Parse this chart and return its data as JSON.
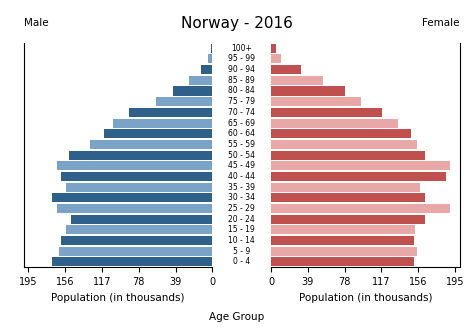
{
  "title": "Norway - 2016",
  "male_label": "Male",
  "female_label": "Female",
  "xlabel_left": "Population (in thousands)",
  "xlabel_center": "Age Group",
  "xlabel_right": "Population (in thousands)",
  "age_groups": [
    "0 - 4",
    "5 - 9",
    "10 - 14",
    "15 - 19",
    "20 - 24",
    "25 - 29",
    "30 - 34",
    "35 - 39",
    "40 - 44",
    "45 - 49",
    "50 - 54",
    "55 - 59",
    "60 - 64",
    "65 - 69",
    "70 - 74",
    "75 - 79",
    "80 - 84",
    "85 - 89",
    "90 - 94",
    "95 - 99",
    "100+"
  ],
  "male_values": [
    170,
    163,
    160,
    155,
    150,
    165,
    170,
    155,
    160,
    165,
    152,
    130,
    115,
    105,
    88,
    60,
    42,
    25,
    12,
    5,
    2
  ],
  "female_values": [
    152,
    155,
    152,
    153,
    163,
    190,
    163,
    158,
    185,
    190,
    163,
    155,
    148,
    135,
    118,
    95,
    78,
    55,
    32,
    11,
    5
  ],
  "male_dark": "#2e608a",
  "male_light": "#7ba3c8",
  "female_dark": "#c0504d",
  "female_light": "#e8a8a8",
  "xticks": [
    0,
    39,
    78,
    117,
    156,
    195
  ],
  "xlim": 200,
  "background_color": "#ffffff",
  "title_fontsize": 11,
  "label_fontsize": 7.5,
  "tick_fontsize": 7,
  "age_fontsize": 5.5,
  "bar_height": 0.85
}
